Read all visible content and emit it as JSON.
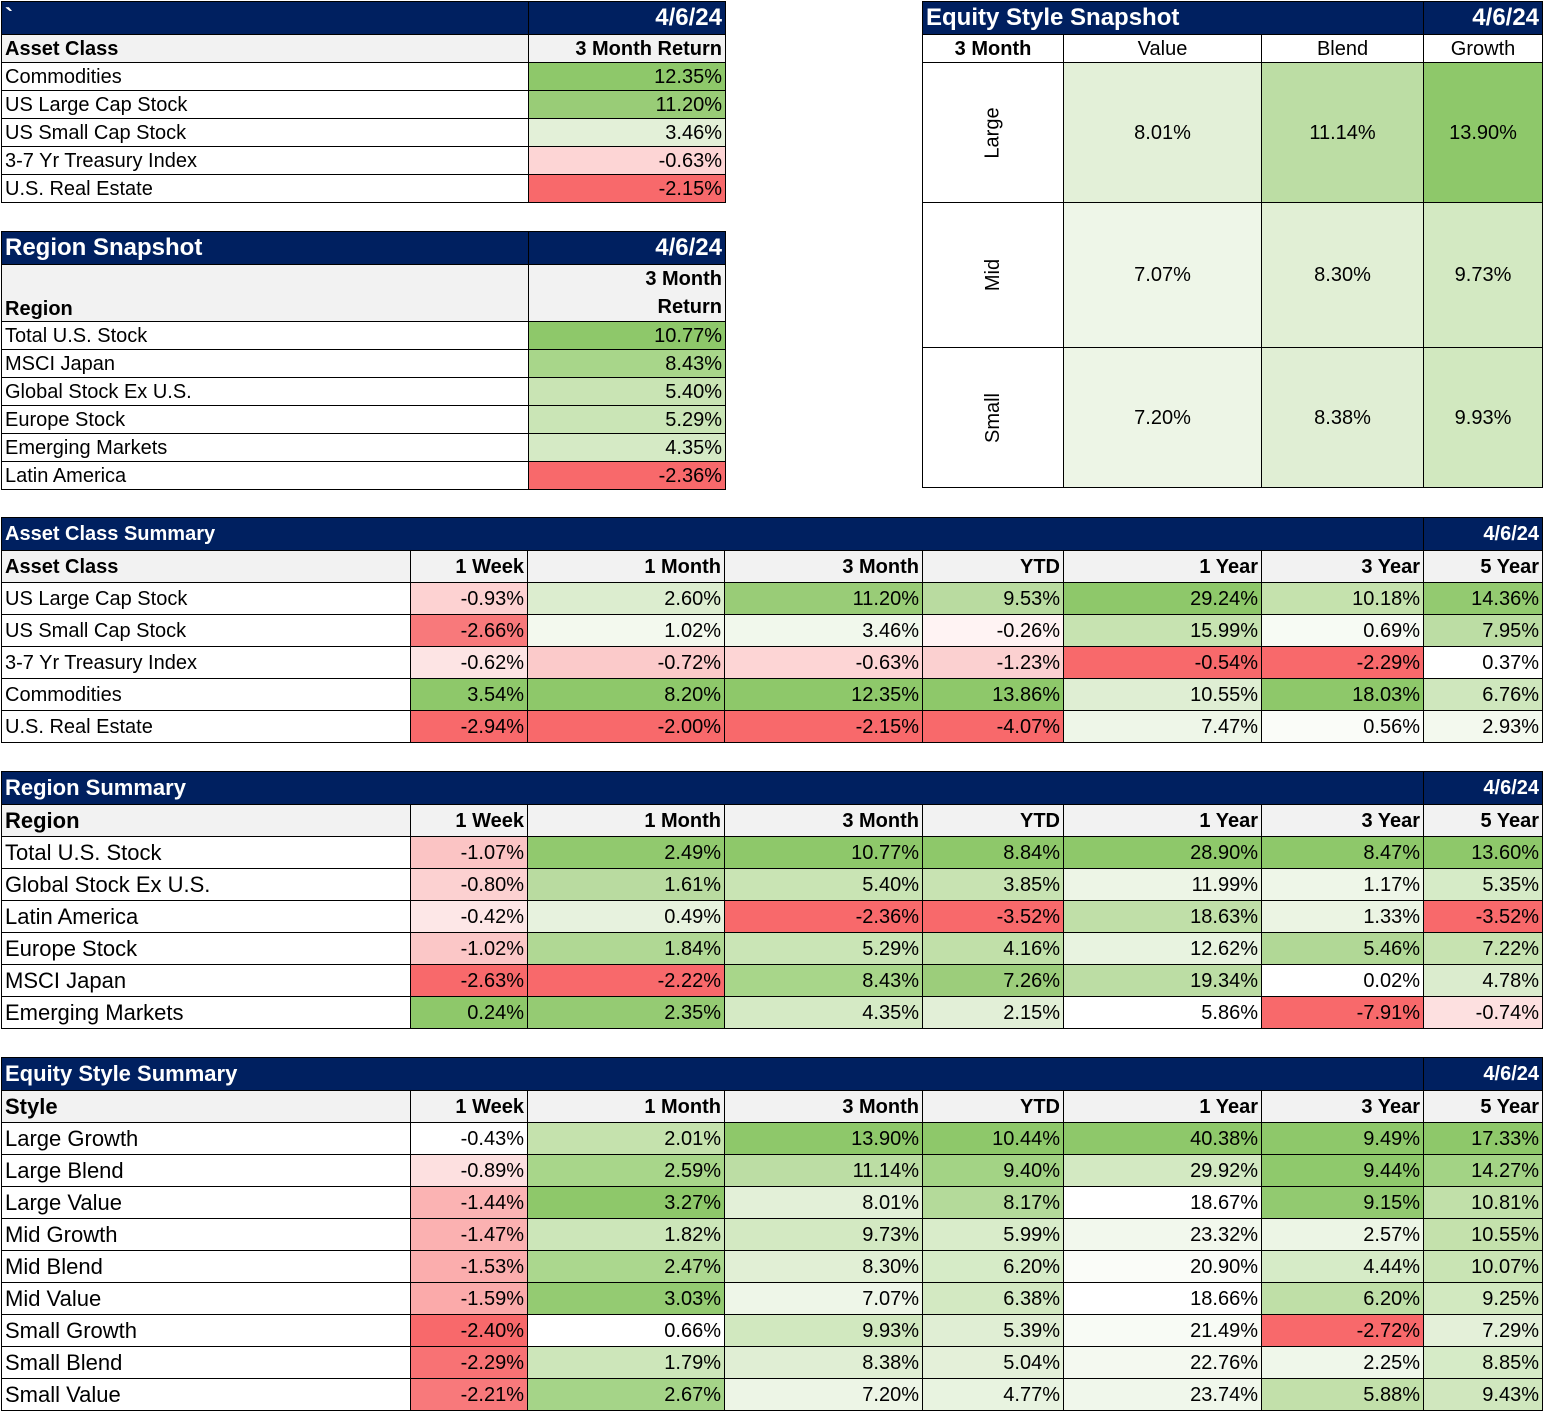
{
  "asset_snapshot": {
    "title": "`",
    "date": "4/6/24",
    "headers": [
      "Asset Class",
      "3 Month Return"
    ],
    "rows": [
      {
        "label": "Commodities",
        "value": "12.35%",
        "bg": "#8ec86a"
      },
      {
        "label": "US Large Cap Stock",
        "value": "11.20%",
        "bg": "#99cc77"
      },
      {
        "label": "US Small Cap Stock",
        "value": "3.46%",
        "bg": "#e3f0d8"
      },
      {
        "label": "3-7 Yr Treasury Index",
        "value": "-0.63%",
        "bg": "#fdd5d5"
      },
      {
        "label": "U.S. Real Estate",
        "value": "-2.15%",
        "bg": "#f8696b"
      }
    ]
  },
  "region_snapshot": {
    "title": "Region Snapshot",
    "date": "4/6/24",
    "headers": [
      "Region",
      "3 Month",
      "Return"
    ],
    "rows": [
      {
        "label": "Total U.S. Stock",
        "value": "10.77%",
        "bg": "#8ec86a"
      },
      {
        "label": "MSCI Japan",
        "value": "8.43%",
        "bg": "#a8d68a"
      },
      {
        "label": "Global Stock Ex U.S.",
        "value": "5.40%",
        "bg": "#c9e4b4"
      },
      {
        "label": "Europe Stock",
        "value": "5.29%",
        "bg": "#cae5b6"
      },
      {
        "label": "Emerging Markets",
        "value": "4.35%",
        "bg": "#d5eac5"
      },
      {
        "label": "Latin America",
        "value": "-2.36%",
        "bg": "#f8696b"
      }
    ]
  },
  "style_snapshot": {
    "title": "Equity Style Snapshot",
    "date": "4/6/24",
    "corner": "3 Month",
    "cols": [
      "Value",
      "Blend",
      "Growth"
    ],
    "rows": [
      {
        "label": "Large",
        "cells": [
          {
            "value": "8.01%",
            "bg": "#e3f0d8"
          },
          {
            "value": "11.14%",
            "bg": "#bcdda4"
          },
          {
            "value": "13.90%",
            "bg": "#8ec86a"
          }
        ]
      },
      {
        "label": "Mid",
        "cells": [
          {
            "value": "7.07%",
            "bg": "#eef6e8"
          },
          {
            "value": "8.30%",
            "bg": "#e1efd5"
          },
          {
            "value": "9.73%",
            "bg": "#d3e9c2"
          }
        ]
      },
      {
        "label": "Small",
        "cells": [
          {
            "value": "7.20%",
            "bg": "#edf5e6"
          },
          {
            "value": "8.38%",
            "bg": "#e0eed4"
          },
          {
            "value": "9.93%",
            "bg": "#d1e8bf"
          }
        ]
      }
    ]
  },
  "asset_summary": {
    "title": "Asset Class Summary",
    "date": "4/6/24",
    "headers": [
      "Asset Class",
      "1 Week",
      "1 Month",
      "3 Month",
      "YTD",
      "1 Year",
      "3 Year",
      "5 Year"
    ],
    "rows": [
      {
        "label": "US Large Cap Stock",
        "cells": [
          {
            "v": "-0.93%",
            "bg": "#fdd2d2"
          },
          {
            "v": "2.60%",
            "bg": "#dcedcf"
          },
          {
            "v": "11.20%",
            "bg": "#99cc77"
          },
          {
            "v": "9.53%",
            "bg": "#b9dba0"
          },
          {
            "v": "29.24%",
            "bg": "#8ec86a"
          },
          {
            "v": "10.18%",
            "bg": "#c5e2ad"
          },
          {
            "v": "14.36%",
            "bg": "#93ca70"
          }
        ]
      },
      {
        "label": "US Small Cap Stock",
        "cells": [
          {
            "v": "-2.66%",
            "bg": "#f8797b"
          },
          {
            "v": "1.02%",
            "bg": "#f3f9ee"
          },
          {
            "v": "3.46%",
            "bg": "#f1f8ec"
          },
          {
            "v": "-0.26%",
            "bg": "#fff3f3"
          },
          {
            "v": "15.99%",
            "bg": "#c7e3b1"
          },
          {
            "v": "0.69%",
            "bg": "#f7fbf4"
          },
          {
            "v": "7.95%",
            "bg": "#bcdda4"
          }
        ]
      },
      {
        "label": "3-7 Yr Treasury Index",
        "cells": [
          {
            "v": "-0.62%",
            "bg": "#fde4e4"
          },
          {
            "v": "-0.72%",
            "bg": "#fbcaca"
          },
          {
            "v": "-0.63%",
            "bg": "#fdd5d5"
          },
          {
            "v": "-1.23%",
            "bg": "#fbd0d0"
          },
          {
            "v": "-0.54%",
            "bg": "#f8696b"
          },
          {
            "v": "-2.29%",
            "bg": "#f8696b"
          },
          {
            "v": "0.37%",
            "bg": "#ffffff"
          }
        ]
      },
      {
        "label": "Commodities",
        "cells": [
          {
            "v": "3.54%",
            "bg": "#8ec86a"
          },
          {
            "v": "8.20%",
            "bg": "#8ec86a"
          },
          {
            "v": "12.35%",
            "bg": "#8ec86a"
          },
          {
            "v": "13.86%",
            "bg": "#8ec86a"
          },
          {
            "v": "10.55%",
            "bg": "#dfeed3"
          },
          {
            "v": "18.03%",
            "bg": "#8ec86a"
          },
          {
            "v": "6.76%",
            "bg": "#cfe7bd"
          }
        ]
      },
      {
        "label": "U.S. Real Estate",
        "cells": [
          {
            "v": "-2.94%",
            "bg": "#f8696b"
          },
          {
            "v": "-2.00%",
            "bg": "#f8696b"
          },
          {
            "v": "-2.15%",
            "bg": "#f8696b"
          },
          {
            "v": "-4.07%",
            "bg": "#f8696b"
          },
          {
            "v": "7.47%",
            "bg": "#eef6e8"
          },
          {
            "v": "0.56%",
            "bg": "#fafcf8"
          },
          {
            "v": "2.93%",
            "bg": "#f3f9ee"
          }
        ]
      }
    ]
  },
  "region_summary": {
    "title": "Region Summary",
    "date": "4/6/24",
    "headers": [
      "Region",
      "1 Week",
      "1 Month",
      "3 Month",
      "YTD",
      "1 Year",
      "3 Year",
      "5 Year"
    ],
    "rows": [
      {
        "label": "Total U.S. Stock",
        "cells": [
          {
            "v": "-1.07%",
            "bg": "#fbc4c4"
          },
          {
            "v": "2.49%",
            "bg": "#91c96e"
          },
          {
            "v": "10.77%",
            "bg": "#8ec86a"
          },
          {
            "v": "8.84%",
            "bg": "#8ec86a"
          },
          {
            "v": "28.90%",
            "bg": "#8ec86a"
          },
          {
            "v": "8.47%",
            "bg": "#8ec86a"
          },
          {
            "v": "13.60%",
            "bg": "#8ec86a"
          }
        ]
      },
      {
        "label": "Global Stock Ex U.S.",
        "cells": [
          {
            "v": "-0.80%",
            "bg": "#fcd1d1"
          },
          {
            "v": "1.61%",
            "bg": "#b9dba0"
          },
          {
            "v": "5.40%",
            "bg": "#c9e4b4"
          },
          {
            "v": "3.85%",
            "bg": "#c8e3b2"
          },
          {
            "v": "11.99%",
            "bg": "#edf5e6"
          },
          {
            "v": "1.17%",
            "bg": "#eef6e8"
          },
          {
            "v": "5.35%",
            "bg": "#d6ebc7"
          }
        ]
      },
      {
        "label": "Latin America",
        "cells": [
          {
            "v": "-0.42%",
            "bg": "#fde7e7"
          },
          {
            "v": "0.49%",
            "bg": "#e7f2de"
          },
          {
            "v": "-2.36%",
            "bg": "#f8696b"
          },
          {
            "v": "-3.52%",
            "bg": "#f8696b"
          },
          {
            "v": "18.63%",
            "bg": "#c0dfa8"
          },
          {
            "v": "1.33%",
            "bg": "#ebf4e3"
          },
          {
            "v": "-3.52%",
            "bg": "#f8696b"
          }
        ]
      },
      {
        "label": "Europe Stock",
        "cells": [
          {
            "v": "-1.02%",
            "bg": "#fbc7c7"
          },
          {
            "v": "1.84%",
            "bg": "#b0d894"
          },
          {
            "v": "5.29%",
            "bg": "#cae5b6"
          },
          {
            "v": "4.16%",
            "bg": "#c1e0a9"
          },
          {
            "v": "12.62%",
            "bg": "#e8f3e0"
          },
          {
            "v": "5.46%",
            "bg": "#b1d896"
          },
          {
            "v": "7.22%",
            "bg": "#c7e3b1"
          }
        ]
      },
      {
        "label": "MSCI Japan",
        "cells": [
          {
            "v": "-2.63%",
            "bg": "#f8696b"
          },
          {
            "v": "-2.22%",
            "bg": "#f8696b"
          },
          {
            "v": "8.43%",
            "bg": "#a8d68a"
          },
          {
            "v": "7.26%",
            "bg": "#9ccd7b"
          },
          {
            "v": "19.34%",
            "bg": "#bcdda4"
          },
          {
            "v": "0.02%",
            "bg": "#ffffff"
          },
          {
            "v": "4.78%",
            "bg": "#dbecce"
          }
        ]
      },
      {
        "label": "Emerging Markets",
        "cells": [
          {
            "v": "0.24%",
            "bg": "#8ec86a"
          },
          {
            "v": "2.35%",
            "bg": "#95cb73"
          },
          {
            "v": "4.35%",
            "bg": "#d5eac5"
          },
          {
            "v": "2.15%",
            "bg": "#e2efd7"
          },
          {
            "v": "5.86%",
            "bg": "#ffffff"
          },
          {
            "v": "-7.91%",
            "bg": "#f8696b"
          },
          {
            "v": "-0.74%",
            "bg": "#fde0e0"
          }
        ]
      }
    ]
  },
  "style_summary": {
    "title": "Equity Style Summary",
    "date": "4/6/24",
    "headers": [
      "Style",
      "1 Week",
      "1 Month",
      "3 Month",
      "YTD",
      "1 Year",
      "3 Year",
      "5 Year"
    ],
    "rows": [
      {
        "label": "Large Growth",
        "cells": [
          {
            "v": "-0.43%",
            "bg": "#ffffff"
          },
          {
            "v": "2.01%",
            "bg": "#c5e2ad"
          },
          {
            "v": "13.90%",
            "bg": "#8ec86a"
          },
          {
            "v": "10.44%",
            "bg": "#8ec86a"
          },
          {
            "v": "40.38%",
            "bg": "#8ec86a"
          },
          {
            "v": "9.49%",
            "bg": "#8ec86a"
          },
          {
            "v": "17.33%",
            "bg": "#8ec86a"
          }
        ]
      },
      {
        "label": "Large Blend",
        "cells": [
          {
            "v": "-0.89%",
            "bg": "#fde0e0"
          },
          {
            "v": "2.59%",
            "bg": "#a8d68a"
          },
          {
            "v": "11.14%",
            "bg": "#bcdda4"
          },
          {
            "v": "9.40%",
            "bg": "#a3d385"
          },
          {
            "v": "29.92%",
            "bg": "#d3e9c2"
          },
          {
            "v": "9.44%",
            "bg": "#8fc96c"
          },
          {
            "v": "14.27%",
            "bg": "#a3d385"
          }
        ]
      },
      {
        "label": "Large Value",
        "cells": [
          {
            "v": "-1.44%",
            "bg": "#fbb3b3"
          },
          {
            "v": "3.27%",
            "bg": "#8ec86a"
          },
          {
            "v": "8.01%",
            "bg": "#e3f0d8"
          },
          {
            "v": "8.17%",
            "bg": "#b4da9a"
          },
          {
            "v": "18.67%",
            "bg": "#ffffff"
          },
          {
            "v": "9.15%",
            "bg": "#92ca70"
          },
          {
            "v": "10.81%",
            "bg": "#c1e0a9"
          }
        ]
      },
      {
        "label": "Mid Growth",
        "cells": [
          {
            "v": "-1.47%",
            "bg": "#fbb1b1"
          },
          {
            "v": "1.82%",
            "bg": "#cce6b9"
          },
          {
            "v": "9.73%",
            "bg": "#d3e9c2"
          },
          {
            "v": "5.99%",
            "bg": "#d9ecca"
          },
          {
            "v": "23.32%",
            "bg": "#f2f8ed"
          },
          {
            "v": "2.57%",
            "bg": "#ecf5e5"
          },
          {
            "v": "10.55%",
            "bg": "#c4e1ac"
          }
        ]
      },
      {
        "label": "Mid Blend",
        "cells": [
          {
            "v": "-1.53%",
            "bg": "#fbadad"
          },
          {
            "v": "2.47%",
            "bg": "#abd78e"
          },
          {
            "v": "8.30%",
            "bg": "#e1efd5"
          },
          {
            "v": "6.20%",
            "bg": "#d6ebc7"
          },
          {
            "v": "20.90%",
            "bg": "#fafcf8"
          },
          {
            "v": "4.44%",
            "bg": "#d6ebc7"
          },
          {
            "v": "10.07%",
            "bg": "#c9e4b4"
          }
        ]
      },
      {
        "label": "Mid Value",
        "cells": [
          {
            "v": "-1.59%",
            "bg": "#fbaaaa"
          },
          {
            "v": "3.03%",
            "bg": "#94cb72"
          },
          {
            "v": "7.07%",
            "bg": "#eef6e8"
          },
          {
            "v": "6.38%",
            "bg": "#d3e9c2"
          },
          {
            "v": "18.66%",
            "bg": "#ffffff"
          },
          {
            "v": "6.20%",
            "bg": "#bfdfa7"
          },
          {
            "v": "9.25%",
            "bg": "#d2e9c0"
          }
        ]
      },
      {
        "label": "Small Growth",
        "cells": [
          {
            "v": "-2.40%",
            "bg": "#f8696b"
          },
          {
            "v": "0.66%",
            "bg": "#ffffff"
          },
          {
            "v": "9.93%",
            "bg": "#d1e8bf"
          },
          {
            "v": "5.39%",
            "bg": "#e0eed4"
          },
          {
            "v": "21.49%",
            "bg": "#f8fbf5"
          },
          {
            "v": "-2.72%",
            "bg": "#f8696b"
          },
          {
            "v": "7.29%",
            "bg": "#e4f0d9"
          }
        ]
      },
      {
        "label": "Small Blend",
        "cells": [
          {
            "v": "-2.29%",
            "bg": "#f87274"
          },
          {
            "v": "1.79%",
            "bg": "#cde6ba"
          },
          {
            "v": "8.38%",
            "bg": "#e0eed4"
          },
          {
            "v": "5.04%",
            "bg": "#e4f0d9"
          },
          {
            "v": "22.76%",
            "bg": "#f4f9f0"
          },
          {
            "v": "2.25%",
            "bg": "#eff7ea"
          },
          {
            "v": "8.85%",
            "bg": "#d6ebc7"
          }
        ]
      },
      {
        "label": "Small Value",
        "cells": [
          {
            "v": "-2.21%",
            "bg": "#f8797b"
          },
          {
            "v": "2.67%",
            "bg": "#a5d488"
          },
          {
            "v": "7.20%",
            "bg": "#edf5e6"
          },
          {
            "v": "4.77%",
            "bg": "#e8f3e0"
          },
          {
            "v": "23.74%",
            "bg": "#f0f7eb"
          },
          {
            "v": "5.88%",
            "bg": "#c2e0aa"
          },
          {
            "v": "9.43%",
            "bg": "#d0e7be"
          }
        ]
      }
    ]
  }
}
